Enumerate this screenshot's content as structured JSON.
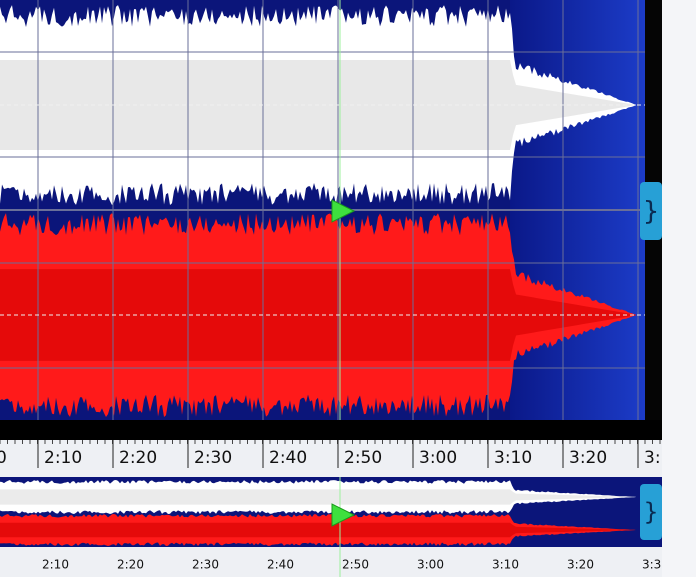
{
  "timeline": {
    "labels": [
      "0",
      "2:10",
      "2:20",
      "2:30",
      "2:40",
      "2:50",
      "3:00",
      "3:10",
      "3:20",
      "3:"
    ]
  },
  "overview": {
    "labels": [
      "2:10",
      "2:20",
      "2:30",
      "2:40",
      "2:50",
      "3:00",
      "3:10",
      "3:20",
      "3:3"
    ]
  }
}
